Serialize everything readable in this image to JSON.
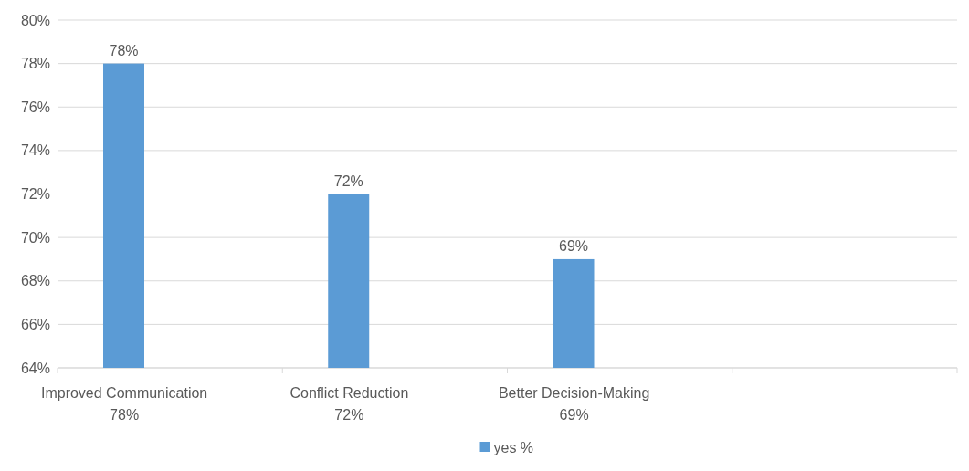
{
  "chart_data": {
    "type": "bar",
    "categories": [
      "Improved Communication\n78%",
      "Conflict Reduction\n72%",
      "Better Decision-Making\n69%",
      null
    ],
    "series": [
      {
        "name": "yes %",
        "color": "#5b9bd5",
        "values": [
          78,
          72,
          69,
          null
        ],
        "value_labels": [
          "78%",
          "72%",
          "69%",
          null
        ]
      }
    ],
    "ylim": [
      64,
      80
    ],
    "yticks": [
      {
        "value": 64,
        "label": "64%"
      },
      {
        "value": 66,
        "label": "66%"
      },
      {
        "value": 68,
        "label": "68%"
      },
      {
        "value": 70,
        "label": "70%"
      },
      {
        "value": 72,
        "label": "72%"
      },
      {
        "value": 74,
        "label": "74%"
      },
      {
        "value": 76,
        "label": "76%"
      },
      {
        "value": 78,
        "label": "78%"
      },
      {
        "value": 80,
        "label": "80%"
      }
    ],
    "grid": "y",
    "legend": "bottom"
  }
}
